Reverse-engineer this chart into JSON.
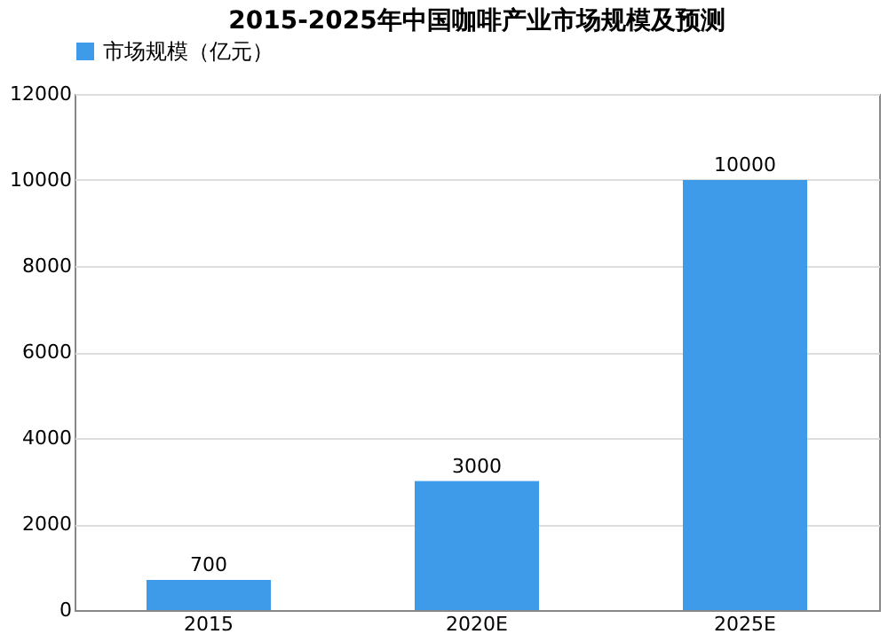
{
  "chart_data": {
    "type": "bar",
    "title": "2015-2025年中国咖啡产业市场规模及预测",
    "categories": [
      "2015",
      "2020E",
      "2025E"
    ],
    "series": [
      {
        "name": "市场规模（亿元）",
        "color": "#3d9be9",
        "values": [
          700,
          3000,
          10000
        ]
      }
    ],
    "ylim": [
      0,
      12000
    ],
    "yticks": [
      0,
      2000,
      4000,
      6000,
      8000,
      10000,
      12000
    ],
    "grid": "y",
    "legend": "top",
    "data_labels": true
  }
}
